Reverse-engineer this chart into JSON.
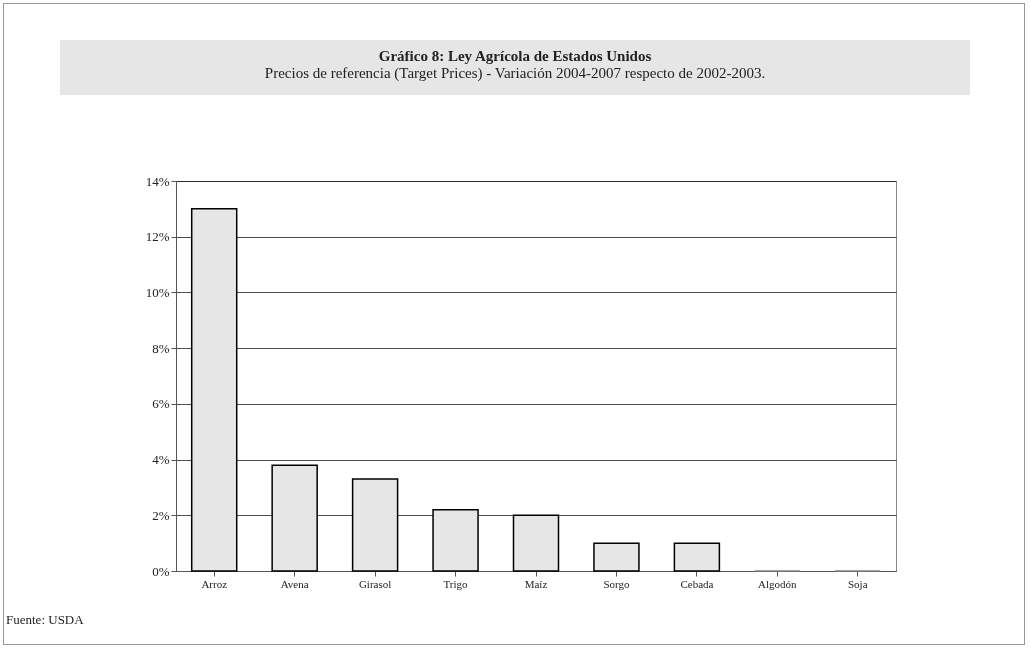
{
  "chart_data": {
    "type": "bar",
    "title": "Gráfico 8: Ley Agrícola de Estados Unidos",
    "subtitle": "Precios de referencia (Target Prices) -  Variación 2004-2007 respecto de 2002-2003.",
    "categories": [
      "Arroz",
      "Avena",
      "Girasol",
      "Trigo",
      "Maíz",
      "Sorgo",
      "Cebada",
      "Algodón",
      "Soja"
    ],
    "values": [
      13.0,
      3.8,
      3.3,
      2.2,
      2.0,
      1.0,
      1.0,
      0,
      0
    ],
    "colors": [
      "#e6e6e6",
      "#e6e6e6",
      "#e6e6e6",
      "#e6e6e6",
      "#e6e6e6",
      "#e6e6e6",
      "#e6e6e6",
      "#808080",
      "#808080"
    ],
    "ylim": [
      0,
      14
    ],
    "yticks": [
      {
        "value": 0,
        "label": "0%"
      },
      {
        "value": 2,
        "label": "2%"
      },
      {
        "value": 4,
        "label": "4%"
      },
      {
        "value": 6,
        "label": "6%"
      },
      {
        "value": 8,
        "label": "8%"
      },
      {
        "value": 10,
        "label": "10%"
      },
      {
        "value": 12,
        "label": "12%"
      },
      {
        "value": 14,
        "label": "14%"
      }
    ],
    "grid": "y",
    "annotations": [
      "Fuente: USDA"
    ]
  }
}
